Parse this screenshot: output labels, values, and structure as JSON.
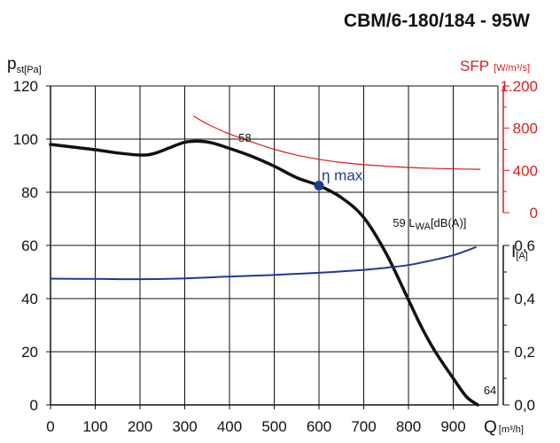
{
  "chart_data": {
    "type": "line",
    "title": "CBM/6-180/184 - 95W",
    "x_axis": {
      "label": "Q",
      "unit": "[m³/h]",
      "range": [
        0,
        1000
      ],
      "ticks": [
        "0",
        "100",
        "200",
        "300",
        "400",
        "500",
        "600",
        "700",
        "800",
        "900"
      ]
    },
    "y_left": {
      "label": "p",
      "label_sub": "st[Pa]",
      "range": [
        0,
        120
      ],
      "ticks": [
        "0",
        "20",
        "40",
        "60",
        "80",
        "100",
        "120"
      ]
    },
    "y_right_sfp": {
      "label": "SFP",
      "unit": "[W/m³/s]",
      "range": [
        0,
        1200
      ],
      "ticks": [
        "0",
        "400",
        "800",
        "1.200"
      ],
      "color": "#d81e1e"
    },
    "y_right_current": {
      "label": "I",
      "unit": "[A]",
      "range": [
        0,
        0.6
      ],
      "ticks": [
        "0,0",
        "0,2",
        "0,4",
        "0,6"
      ]
    },
    "grid": true,
    "series": [
      {
        "key": "pressure",
        "axis": "left",
        "color": "#111111",
        "x": [
          0,
          50,
          100,
          150,
          200,
          230,
          270,
          300,
          330,
          360,
          400,
          450,
          500,
          550,
          600,
          650,
          700,
          750,
          800,
          830,
          860,
          900,
          930,
          955
        ],
        "y": [
          98,
          97,
          96,
          94.8,
          94,
          94.5,
          97,
          98.8,
          99.2,
          98.6,
          96.5,
          93.5,
          89.8,
          85.5,
          82.5,
          78,
          70.5,
          57,
          39.5,
          29,
          20,
          10,
          3,
          0
        ]
      },
      {
        "key": "sfp",
        "axis": "right_sfp",
        "color": "#d81e1e",
        "x": [
          320,
          350,
          400,
          450,
          500,
          550,
          600,
          650,
          700,
          750,
          800,
          850,
          900,
          960
        ],
        "y": [
          915,
          840,
          745,
          670,
          600,
          545,
          505,
          475,
          455,
          440,
          428,
          420,
          415,
          410
        ]
      },
      {
        "key": "current",
        "axis": "right_current",
        "color": "#1f3a93",
        "x": [
          0,
          100,
          200,
          300,
          400,
          500,
          600,
          700,
          750,
          800,
          850,
          900,
          950
        ],
        "y": [
          0.475,
          0.474,
          0.473,
          0.476,
          0.483,
          0.489,
          0.497,
          0.508,
          0.516,
          0.526,
          0.543,
          0.563,
          0.593
        ]
      }
    ],
    "eta_max": {
      "label": "η max",
      "x": 600,
      "y": 82.5,
      "color": "#1f3a93"
    },
    "annotations": [
      {
        "text": "58",
        "x": 420,
        "y": 99
      },
      {
        "text": "59 L",
        "sub": "WA",
        "unit": "[dB(A)]",
        "x": 765,
        "y": 67
      },
      {
        "text": "64",
        "x": 968,
        "y": 4
      }
    ]
  }
}
